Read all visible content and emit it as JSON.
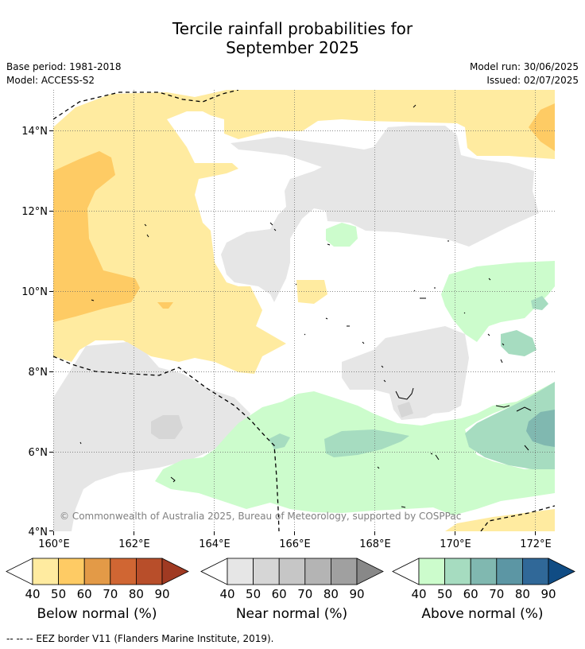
{
  "title": {
    "line1": "Tercile rainfall probabilities for",
    "line2": "September 2025"
  },
  "meta": {
    "base_period": "Base period: 1981-2018",
    "model": "Model: ACCESS-S2",
    "model_run": "Model run: 30/06/2025",
    "issued": "Issued: 02/07/2025"
  },
  "map": {
    "y_ticks": [
      "14°N",
      "12°N",
      "10°N",
      "8°N",
      "6°N",
      "4°N"
    ],
    "x_ticks": [
      "160°E",
      "162°E",
      "164°E",
      "166°E",
      "168°E",
      "170°E",
      "172°E"
    ],
    "copyright": "© Commonwealth of Australia 2025, Bureau of Meteorology, supported by COSPPac"
  },
  "colorbars": [
    {
      "label": "Below normal (%)",
      "ticks": [
        "40",
        "50",
        "60",
        "70",
        "80",
        "90"
      ],
      "colors": [
        "#ffffff",
        "#ffeba0",
        "#fecb64",
        "#e39a47",
        "#d06633",
        "#b84e2a",
        "#a03a22"
      ]
    },
    {
      "label": "Near normal (%)",
      "ticks": [
        "40",
        "50",
        "60",
        "70",
        "80",
        "90"
      ],
      "colors": [
        "#ffffff",
        "#e6e6e6",
        "#d6d6d6",
        "#c6c6c6",
        "#b4b4b4",
        "#a0a0a0",
        "#888888"
      ]
    },
    {
      "label": "Above normal (%)",
      "ticks": [
        "40",
        "50",
        "60",
        "70",
        "80",
        "90"
      ],
      "colors": [
        "#ffffff",
        "#ccfccc",
        "#a6dcc0",
        "#80b8b0",
        "#5c96a4",
        "#306898",
        "#104c84"
      ]
    }
  ],
  "footer": "--  --  -- EEZ border V11 (Flanders Marine Institute, 2019)."
}
